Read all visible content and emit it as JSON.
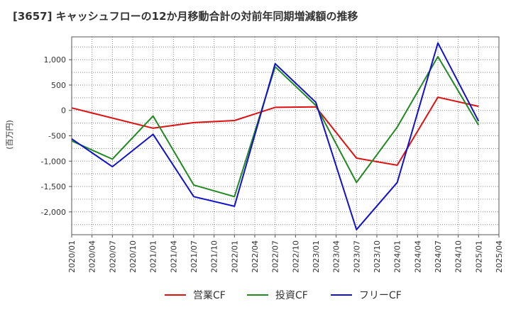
{
  "chart_data": {
    "type": "line",
    "title": "[3657]  キャッシュフローの12か月移動合計の対前年同期増減額の推移",
    "ylabel": "(百万円)",
    "xlabel": "",
    "x": [
      "2020/01",
      "2020/04",
      "2020/07",
      "2020/10",
      "2021/01",
      "2021/04",
      "2021/07",
      "2021/10",
      "2022/01",
      "2022/04",
      "2022/07",
      "2022/10",
      "2023/01",
      "2023/04",
      "2023/07",
      "2023/10",
      "2024/01",
      "2024/04",
      "2024/07",
      "2024/10",
      "2025/01",
      "2025/04"
    ],
    "ylim": [
      -2450,
      1450
    ],
    "yticks": [
      1000,
      500,
      0,
      -500,
      -1000,
      -1500,
      -2000
    ],
    "ytick_labels": [
      "1,000",
      "500",
      "0",
      "-500",
      "-1,000",
      "-1,500",
      "-2,000"
    ],
    "grid": true,
    "legend_position": "bottom",
    "series": [
      {
        "name": "営業CF",
        "color": "#dd1111",
        "values": [
          50,
          null,
          null,
          null,
          -350,
          null,
          -240,
          null,
          -200,
          null,
          60,
          null,
          70,
          null,
          -940,
          null,
          -1080,
          null,
          260,
          null,
          80,
          null
        ]
      },
      {
        "name": "投資CF",
        "color": "#228822",
        "values": [
          -600,
          null,
          -960,
          null,
          -110,
          null,
          -1470,
          null,
          -1700,
          null,
          860,
          null,
          100,
          null,
          -1420,
          null,
          -330,
          null,
          1060,
          null,
          -290,
          null
        ]
      },
      {
        "name": "フリーCF",
        "color": "#1111cc",
        "values": [
          -560,
          null,
          -1110,
          null,
          -470,
          null,
          -1700,
          null,
          -1890,
          null,
          920,
          null,
          160,
          null,
          -2350,
          null,
          -1420,
          null,
          1330,
          null,
          -210,
          null
        ]
      }
    ]
  }
}
